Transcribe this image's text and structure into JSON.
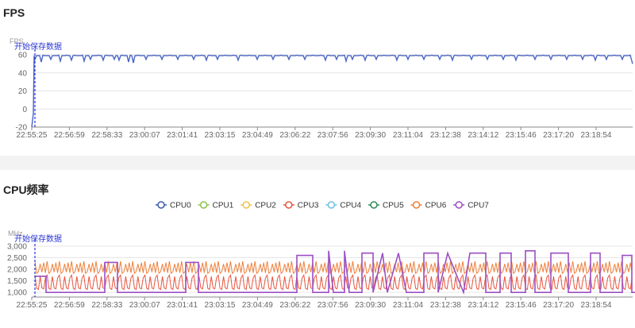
{
  "panels": {
    "fps_title": "FPS",
    "cpu_title": "CPU频率"
  },
  "chart_data": [
    {
      "type": "line",
      "title": "FPS",
      "ylabel": "FPS",
      "yticks": [
        60,
        40,
        20,
        0,
        -20
      ],
      "ylim": [
        -20,
        60
      ],
      "categories": [
        "22:55:25",
        "22:56:59",
        "22:58:33",
        "23:00:07",
        "23:01:41",
        "23:03:15",
        "23:04:49",
        "23:06:22",
        "23:07:56",
        "23:09:30",
        "23:11:04",
        "23:12:38",
        "23:14:12",
        "23:15:46",
        "23:17:20",
        "23:18:54"
      ],
      "marker": {
        "label": "开始保存数据",
        "x": "22:55:25"
      },
      "series": [
        {
          "color": "#4a65c4",
          "baseline": 59,
          "dips": [
            0,
            8,
            20,
            32,
            45,
            62,
            70,
            85,
            100,
            105,
            118,
            123,
            140,
            160,
            180,
            200,
            215,
            230,
            255,
            280,
            300,
            320,
            340,
            365,
            380,
            392,
            400,
            415,
            430,
            455,
            470,
            490,
            510,
            525,
            550,
            570,
            590,
            605,
            630,
            650,
            670,
            690,
            705,
            720,
            740,
            755
          ]
        }
      ]
    },
    {
      "type": "line",
      "title": "CPU频率",
      "ylabel": "MHz",
      "yticks": [
        3000,
        2500,
        2000,
        1500,
        1000
      ],
      "ylim": [
        800,
        3000
      ],
      "categories": [
        "22:55:25",
        "22:56:59",
        "22:58:33",
        "23:00:07",
        "23:01:41",
        "23:03:15",
        "23:04:49",
        "23:06:22",
        "23:07:56",
        "23:09:30",
        "23:11:04",
        "23:12:38",
        "23:14:12",
        "23:15:46",
        "23:17:20",
        "23:18:54"
      ],
      "marker": {
        "label": "开始保存数据",
        "x": "22:55:25"
      },
      "legend": {
        "position": "top-center",
        "items": [
          {
            "name": "CPU0",
            "color": "#3a5aa8"
          },
          {
            "name": "CPU1",
            "color": "#8bc34a"
          },
          {
            "name": "CPU2",
            "color": "#f0c24a"
          },
          {
            "name": "CPU3",
            "color": "#e8553f"
          },
          {
            "name": "CPU4",
            "color": "#6cc0e0"
          },
          {
            "name": "CPU5",
            "color": "#2e8b57"
          },
          {
            "name": "CPU6",
            "color": "#ef7f3a"
          },
          {
            "name": "CPU7",
            "color": "#9b4fc4"
          }
        ]
      },
      "bands": [
        {
          "name": "CPU6",
          "color": "#ef7f3a",
          "low": 1750,
          "high": 2350
        },
        {
          "name": "CPU3",
          "color": "#e8553f",
          "low": 1050,
          "high": 1750
        }
      ],
      "cpu7_segments": [
        [
          0,
          1700
        ],
        [
          14,
          1700
        ],
        [
          14,
          1000
        ],
        [
          88,
          1000
        ],
        [
          88,
          2300
        ],
        [
          104,
          2300
        ],
        [
          104,
          1000
        ],
        [
          190,
          1000
        ],
        [
          190,
          2300
        ],
        [
          206,
          2300
        ],
        [
          206,
          1000
        ],
        [
          330,
          1000
        ],
        [
          330,
          2600
        ],
        [
          350,
          2600
        ],
        [
          350,
          1000
        ],
        [
          370,
          1000
        ],
        [
          370,
          2800
        ],
        [
          376,
          1000
        ],
        [
          390,
          1000
        ],
        [
          390,
          2800
        ],
        [
          396,
          1000
        ],
        [
          412,
          1000
        ],
        [
          412,
          2700
        ],
        [
          426,
          2700
        ],
        [
          426,
          1000
        ],
        [
          438,
          2700
        ],
        [
          444,
          1000
        ],
        [
          458,
          2700
        ],
        [
          468,
          1000
        ],
        [
          490,
          1000
        ],
        [
          490,
          2700
        ],
        [
          508,
          2700
        ],
        [
          508,
          1000
        ],
        [
          520,
          2700
        ],
        [
          540,
          1000
        ],
        [
          548,
          2700
        ],
        [
          568,
          2700
        ],
        [
          568,
          1000
        ],
        [
          586,
          1000
        ],
        [
          586,
          2700
        ],
        [
          600,
          2700
        ],
        [
          600,
          1000
        ],
        [
          618,
          1000
        ],
        [
          618,
          2800
        ],
        [
          630,
          2800
        ],
        [
          630,
          1000
        ],
        [
          650,
          1000
        ],
        [
          650,
          2700
        ],
        [
          672,
          2700
        ],
        [
          672,
          1000
        ],
        [
          700,
          1000
        ],
        [
          700,
          2700
        ],
        [
          712,
          2700
        ],
        [
          712,
          1000
        ],
        [
          740,
          1000
        ],
        [
          740,
          2600
        ],
        [
          752,
          2600
        ],
        [
          752,
          1000
        ],
        [
          760,
          1000
        ]
      ]
    }
  ]
}
